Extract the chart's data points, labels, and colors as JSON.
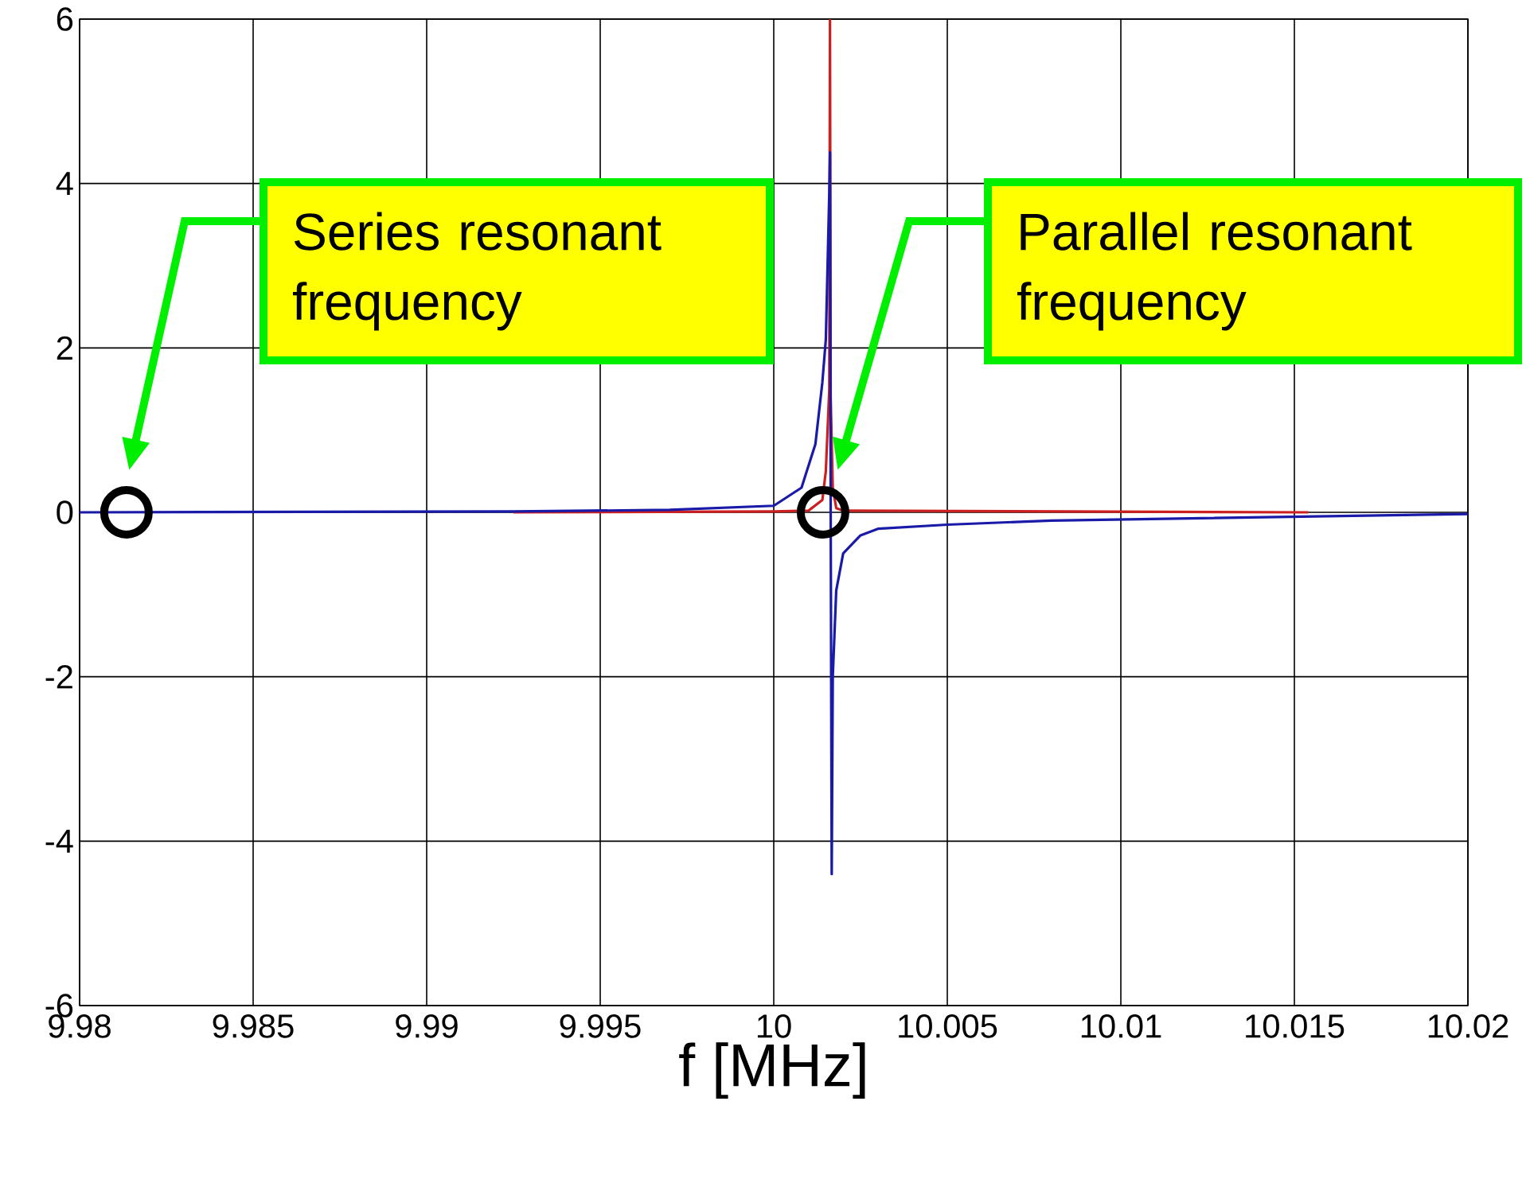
{
  "chart_data": {
    "type": "line",
    "xlabel": "f [MHz]",
    "series": [
      {
        "color": "#cc2020",
        "x": [
          9.9925,
          10.0,
          10.001,
          10.0014,
          10.0015,
          10.0016,
          10.00162,
          10.00164,
          10.0017,
          10.0018,
          10.002,
          10.0154
        ],
        "values": [
          0,
          0.01,
          0.02,
          0.15,
          0.5,
          1.5,
          6,
          1.4,
          0.3,
          0.05,
          0.02,
          0
        ]
      },
      {
        "type": "scatter",
        "marker": "circle",
        "color": "#000000",
        "x": [
          9.98135,
          10.00142
        ],
        "values": [
          0,
          0
        ]
      },
      {
        "color": "#1a1aa8",
        "x": [
          9.98,
          9.9925,
          9.997,
          10.0,
          10.0008,
          10.0012,
          10.0014,
          10.0015,
          10.0016,
          10.00162,
          10.00164,
          10.00167,
          10.0017,
          10.0018,
          10.002,
          10.0025,
          10.003,
          10.005,
          10.008,
          10.02
        ],
        "values": [
          0,
          0.01,
          0.03,
          0.08,
          0.3,
          0.83,
          1.58,
          2.1,
          3.9,
          4.38,
          0,
          -4.4,
          -2.0,
          -0.95,
          -0.5,
          -0.28,
          -0.2,
          -0.15,
          -0.1,
          -0.02
        ]
      }
    ],
    "xlim": [
      9.98,
      10.02
    ],
    "ylim": [
      -6,
      6
    ],
    "xticks": [
      9.98,
      9.985,
      9.99,
      9.995,
      10,
      10.005,
      10.01,
      10.015,
      10.02
    ],
    "yticks": [
      -6,
      -4,
      -2,
      0,
      2,
      4,
      6
    ],
    "grid": true,
    "line_style": "solid",
    "marker": "none",
    "annotations": [
      "Series resonant frequency",
      "Parallel resonant frequency"
    ]
  }
}
